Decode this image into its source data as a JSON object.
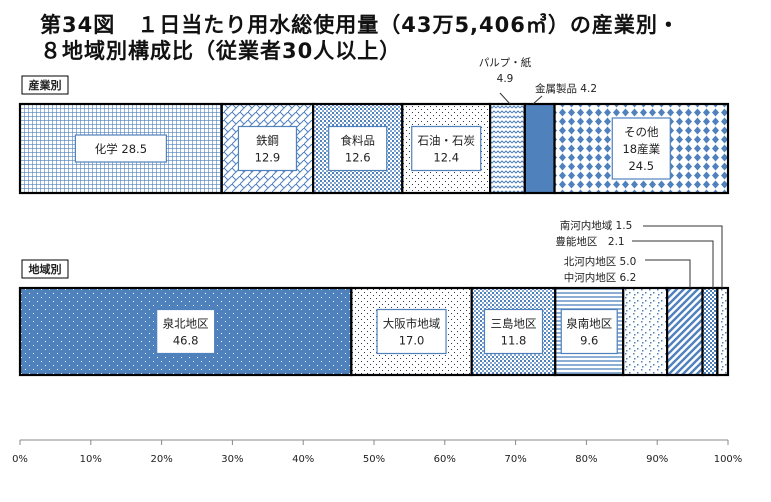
{
  "title_line1": "第34図　１日当たり用水総使用量（43万5,406㎥）の産業別・",
  "title_line2": "８地域別構成比（従業者30人以上）",
  "chart_data": {
    "type": "bar",
    "orientation": "horizontal-stacked-100",
    "xlim": [
      0,
      100
    ],
    "x_ticks": [
      "0%",
      "10%",
      "20%",
      "30%",
      "40%",
      "50%",
      "60%",
      "70%",
      "80%",
      "90%",
      "100%"
    ],
    "accent_color": "#4f81bd",
    "bars": [
      {
        "name": "産業別",
        "segments": [
          {
            "label": "化学",
            "value": 28.5,
            "pattern": "grid",
            "label_lines": [
              "化学 28.5"
            ]
          },
          {
            "label": "鉄鋼",
            "value": 12.9,
            "pattern": "weave",
            "label_lines": [
              "鉄鋼",
              "12.9"
            ]
          },
          {
            "label": "食料品",
            "value": 12.6,
            "pattern": "dense-dots",
            "label_lines": [
              "食料品",
              "12.6"
            ]
          },
          {
            "label": "石油・石炭",
            "value": 12.4,
            "pattern": "sparse-dots",
            "label_lines": [
              "石油・石炭",
              "12.4"
            ]
          },
          {
            "label": "パルプ・紙",
            "value": 4.9,
            "pattern": "wave",
            "callout_lines": [
              "パルプ・紙",
              "4.9"
            ]
          },
          {
            "label": "金属製品",
            "value": 4.2,
            "pattern": "solid",
            "callout_lines": [
              "金属製品 4.2"
            ]
          },
          {
            "label": "その他18産業",
            "value": 24.5,
            "pattern": "diamond",
            "label_lines": [
              "その他",
              "18産業",
              "24.5"
            ]
          }
        ]
      },
      {
        "name": "地域別",
        "segments": [
          {
            "label": "泉北地区",
            "value": 46.8,
            "pattern": "solid-dots",
            "label_lines": [
              "泉北地区",
              "46.8"
            ]
          },
          {
            "label": "大阪市地域",
            "value": 17.0,
            "pattern": "sparse-dots",
            "label_lines": [
              "大阪市地域",
              "17.0"
            ]
          },
          {
            "label": "三島地区",
            "value": 11.8,
            "pattern": "dense-dots",
            "label_lines": [
              "三島地区",
              "11.8"
            ]
          },
          {
            "label": "泉南地区",
            "value": 9.6,
            "pattern": "hlines",
            "label_lines": [
              "泉南地区",
              "9.6"
            ]
          },
          {
            "label": "中河内地区",
            "value": 6.2,
            "pattern": "confetti",
            "callout_lines": [
              "中河内地区 6.2"
            ]
          },
          {
            "label": "北河内地区",
            "value": 5.0,
            "pattern": "diag",
            "callout_lines": [
              "北河内地区 5.0"
            ]
          },
          {
            "label": "豊能地区",
            "value": 2.1,
            "pattern": "checker",
            "callout_lines": [
              "豊能地区　2.1"
            ]
          },
          {
            "label": "南河内地域",
            "value": 1.5,
            "pattern": "confetti",
            "callout_lines": [
              "南河内地域 1.5"
            ]
          }
        ]
      }
    ]
  }
}
